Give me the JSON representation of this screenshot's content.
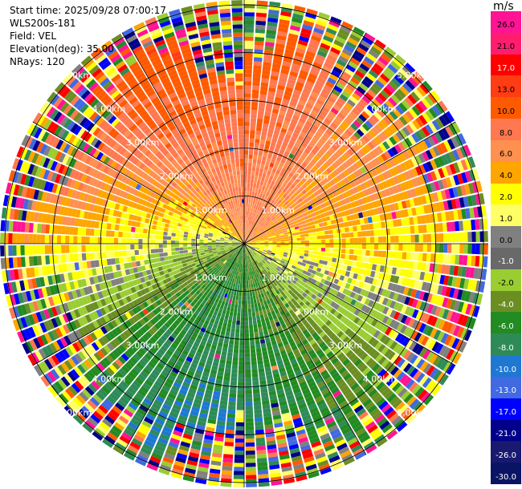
{
  "info": {
    "start_time": "Start time: 2025/09/28 07:00:17",
    "instrument": "WLS200s-181",
    "field": "Field: VEL",
    "elevation": "Elevation(deg): 35.00",
    "nrays": "NRays: 120"
  },
  "colorbar": {
    "unit": "m/s",
    "colors": [
      "#ff1493",
      "#ff1e6e",
      "#ff0000",
      "#ff3c14",
      "#ff5a00",
      "#ff7850",
      "#ff9050",
      "#ffa500",
      "#ffff00",
      "#ffff66",
      "#808080",
      "#696969",
      "#9acd32",
      "#6b8e23",
      "#228b22",
      "#2e8b57",
      "#1e78d2",
      "#4169e1",
      "#0000ff",
      "#00008b",
      "#191970",
      "#0a1464"
    ],
    "labels": [
      "26.0",
      "21.0",
      "17.0",
      "13.0",
      "10.0",
      "8.0",
      "6.0",
      "4.0",
      "2.0",
      "1.0",
      "0.0",
      "-1.0",
      "-2.0",
      "-4.0",
      "-6.0",
      "-8.0",
      "-10.0",
      "-13.0",
      "-17.0",
      "-21.0",
      "-26.0",
      "-30.0"
    ]
  },
  "chart_data": {
    "type": "ppi",
    "field": "VEL",
    "units": "m/s",
    "elevation_deg": 35.0,
    "n_rays": 120,
    "range_rings_km": [
      1.0,
      2.0,
      3.0,
      4.0,
      5.0
    ],
    "ring_labels": [
      "1.00km",
      "2.00km",
      "3.00km",
      "4.00km",
      "5.00km"
    ],
    "max_range_km": 5.1,
    "sector_summary": [
      {
        "azimuth_deg": [
          270,
          360
        ],
        "far_range_velocity_m_s": 10
      },
      {
        "azimuth_deg": [
          0,
          60
        ],
        "near_range_velocity_m_s": 6
      },
      {
        "azimuth_deg": [
          60,
          120
        ],
        "near_range_velocity_m_s": 3
      },
      {
        "azimuth_deg": [
          120,
          200
        ],
        "near_range_velocity_m_s": -8
      },
      {
        "azimuth_deg": [
          200,
          270
        ],
        "near_range_velocity_m_s": -4
      }
    ]
  }
}
